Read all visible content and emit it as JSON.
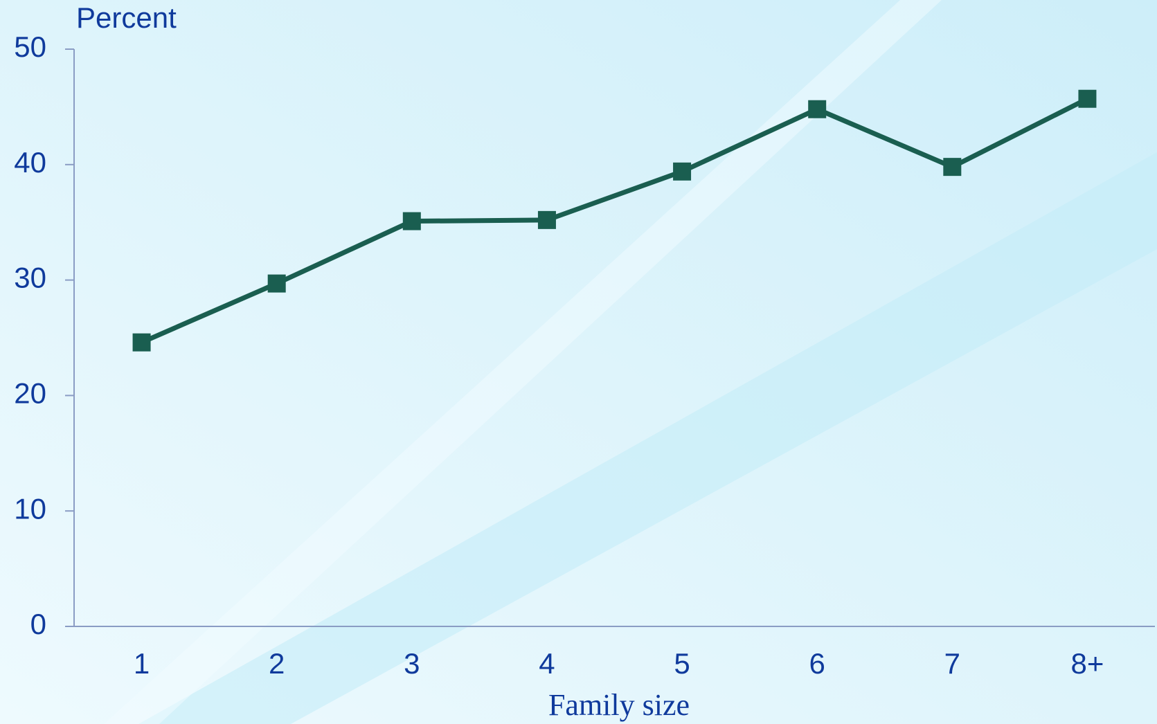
{
  "chart_data": {
    "type": "line",
    "y_label": "Percent",
    "x_label": "Family size",
    "categories": [
      "1",
      "2",
      "3",
      "4",
      "5",
      "6",
      "7",
      "8+"
    ],
    "series": [
      {
        "name": null,
        "color": "#1a5e50",
        "values": [
          24.6,
          29.7,
          35.1,
          35.2,
          39.4,
          44.8,
          39.8,
          45.7
        ]
      }
    ],
    "ylim": [
      0,
      50
    ],
    "yticks": [
      0,
      10,
      20,
      30,
      40,
      50
    ],
    "grid": false
  }
}
